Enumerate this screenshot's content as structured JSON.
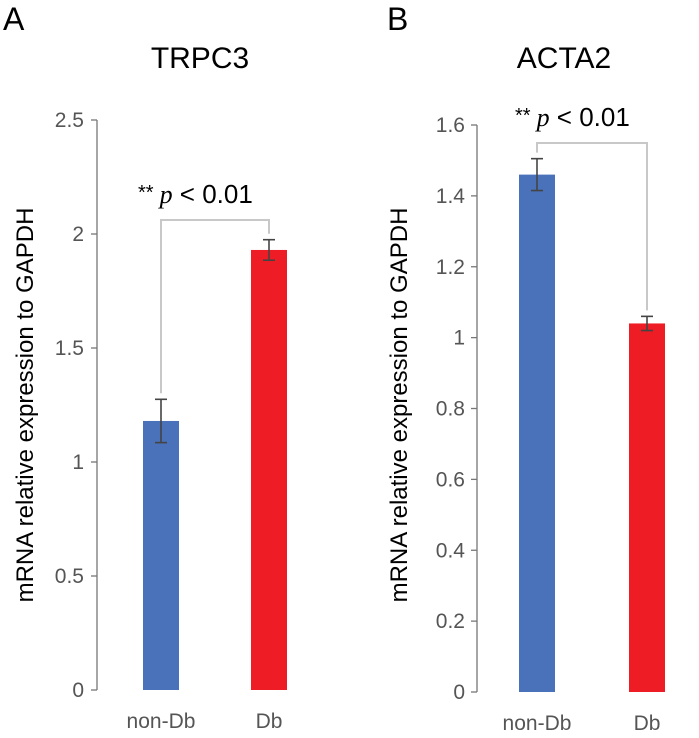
{
  "chart_data": [
    {
      "panel": "A",
      "type": "bar",
      "title": "TRPC3",
      "ylabel": "mRNA relative expression to GAPDH",
      "xlabel": "",
      "categories": [
        "non-Db",
        "Db"
      ],
      "values": [
        1.18,
        1.93
      ],
      "errors": [
        0.095,
        0.045
      ],
      "colors": [
        "#4a72ba",
        "#ee1c24"
      ],
      "ylim": [
        0,
        2.5
      ],
      "yticks": [
        0,
        0.5,
        1,
        1.5,
        2,
        2.5
      ],
      "ytick_labels": [
        "0",
        "0.5",
        "1",
        "1.5",
        "2",
        "2.5"
      ],
      "significance": {
        "stars": "**",
        "p": "p",
        "text": " < 0.01"
      }
    },
    {
      "panel": "B",
      "type": "bar",
      "title": "ACTA2",
      "ylabel": "mRNA relative expression to GAPDH",
      "xlabel": "",
      "categories": [
        "non-Db",
        "Db"
      ],
      "values": [
        1.46,
        1.04
      ],
      "errors": [
        0.045,
        0.02
      ],
      "colors": [
        "#4a72ba",
        "#ee1c24"
      ],
      "ylim": [
        0,
        1.6
      ],
      "yticks": [
        0,
        0.2,
        0.4,
        0.6,
        0.8,
        1,
        1.2,
        1.4,
        1.6
      ],
      "ytick_labels": [
        "0",
        "0.2",
        "0.4",
        "0.6",
        "0.8",
        "1",
        "1.2",
        "1.4",
        "1.6"
      ],
      "significance": {
        "stars": "**",
        "p": "p",
        "text": " < 0.01"
      }
    }
  ]
}
